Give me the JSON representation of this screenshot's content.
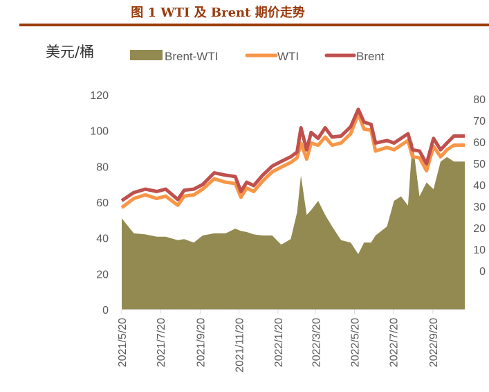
{
  "title": "图 1 WTI 及 Brent 期价走势",
  "chart_data": {
    "type": "line+area",
    "title": "图 1 WTI 及 Brent 期价走势",
    "ylabel": "美元/桶",
    "legend": [
      "Brent-WTI",
      "WTI",
      "Brent"
    ],
    "legend_position": "top",
    "grid": false,
    "colors": {
      "Brent-WTI": "#938a52",
      "WTI": "#f79646",
      "Brent": "#c0504d"
    },
    "xlim": [
      "2021-05-20",
      "2022-11-09"
    ],
    "x_ticks": [
      "2021/5/20",
      "2021/7/20",
      "2021/9/20",
      "2021/11/20",
      "2022/1/20",
      "2022/3/20",
      "2022/5/20",
      "2022/7/20",
      "2022/9/20"
    ],
    "x_tick_dates": [
      "2021-05-20",
      "2021-07-20",
      "2021-09-20",
      "2021-11-20",
      "2022-01-20",
      "2022-03-20",
      "2022-05-20",
      "2022-07-20",
      "2022-09-20"
    ],
    "ylim_left": [
      0,
      120
    ],
    "y_ticks_left": [
      0,
      20,
      40,
      60,
      80,
      100,
      120
    ],
    "ylim_right": [
      -18,
      80
    ],
    "y_ticks_right": [
      0,
      10,
      20,
      30,
      40,
      50,
      60,
      70,
      80
    ],
    "x": [
      "2021-05-20",
      "2021-06-08",
      "2021-06-26",
      "2021-07-14",
      "2021-07-28",
      "2021-08-16",
      "2021-08-26",
      "2021-09-10",
      "2021-09-24",
      "2021-10-12",
      "2021-10-30",
      "2021-11-14",
      "2021-11-23",
      "2021-12-02",
      "2021-12-13",
      "2021-12-27",
      "2022-01-11",
      "2022-01-25",
      "2022-02-09",
      "2022-02-19",
      "2022-02-25",
      "2022-03-06",
      "2022-03-13",
      "2022-03-24",
      "2022-04-04",
      "2022-04-15",
      "2022-04-29",
      "2022-05-14",
      "2022-05-26",
      "2022-06-04",
      "2022-06-15",
      "2022-06-22",
      "2022-07-10",
      "2022-07-21",
      "2022-08-01",
      "2022-08-12",
      "2022-08-19",
      "2022-08-30",
      "2022-09-10",
      "2022-09-21",
      "2022-10-02",
      "2022-10-12",
      "2022-10-23",
      "2022-11-09"
    ],
    "series": [
      {
        "name": "Brent-WTI",
        "axis": "right",
        "kind": "area",
        "values": [
          24.5,
          17.5,
          17.0,
          15.9,
          15.9,
          14.3,
          14.8,
          13.2,
          16.5,
          17.5,
          17.5,
          19.7,
          18.6,
          18.1,
          17.0,
          16.5,
          16.5,
          12.2,
          14.8,
          27.2,
          44.4,
          26.1,
          28.3,
          32.6,
          26.1,
          20.7,
          14.3,
          13.2,
          7.8,
          13.2,
          13.2,
          16.5,
          20.7,
          32.6,
          34.7,
          30.4,
          60.5,
          34.7,
          41.2,
          38.0,
          50.9,
          53.0,
          50.9,
          50.9
        ]
      },
      {
        "name": "WTI",
        "axis": "left",
        "kind": "line",
        "values": [
          57.0,
          62.1,
          64.1,
          62.1,
          63.4,
          58.3,
          63.4,
          64.1,
          67.3,
          73.1,
          71.2,
          70.5,
          62.8,
          67.9,
          66.0,
          71.8,
          77.0,
          79.6,
          82.2,
          84.8,
          93.1,
          84.1,
          93.1,
          91.9,
          96.4,
          91.9,
          93.1,
          98.3,
          109.3,
          100.9,
          100.3,
          88.6,
          90.6,
          89.3,
          91.9,
          94.5,
          85.4,
          84.8,
          77.6,
          91.2,
          85.4,
          89.3,
          91.9,
          91.9
        ]
      },
      {
        "name": "Brent",
        "axis": "left",
        "kind": "line",
        "values": [
          60.9,
          65.4,
          67.3,
          66.0,
          67.3,
          61.5,
          66.7,
          67.3,
          69.9,
          76.4,
          75.1,
          74.4,
          66.0,
          71.2,
          69.3,
          75.1,
          80.2,
          82.8,
          85.4,
          88.0,
          101.6,
          89.3,
          99.0,
          95.7,
          101.6,
          96.4,
          97.0,
          102.2,
          111.9,
          104.8,
          103.5,
          93.1,
          94.5,
          93.1,
          95.7,
          98.3,
          89.3,
          88.6,
          81.5,
          95.7,
          89.3,
          93.1,
          97.0,
          97.0
        ]
      }
    ]
  }
}
